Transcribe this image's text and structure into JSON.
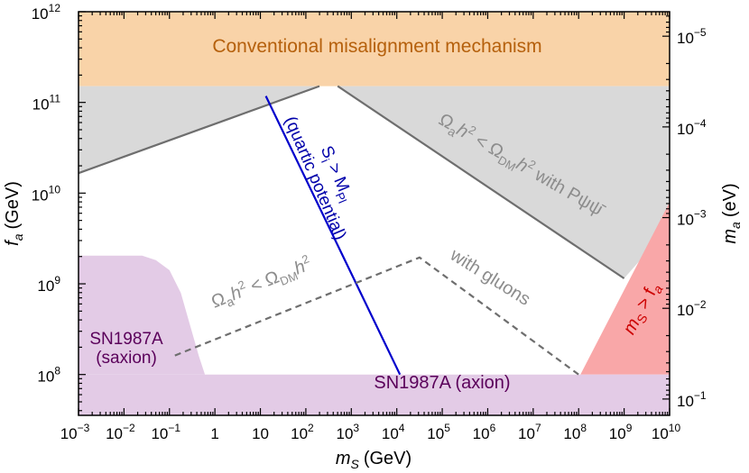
{
  "chart_data": {
    "type": "region",
    "x_axis": {
      "label_main": "m",
      "label_sub": "S",
      "label_units": "(GeV)",
      "scale": "log",
      "range_exp": [
        -3,
        10
      ],
      "tick_labels": [
        {
          "exp": -3,
          "base": "10",
          "sup": "−3"
        },
        {
          "exp": -2,
          "base": "10",
          "sup": "−2"
        },
        {
          "exp": -1,
          "base": "10",
          "sup": "−1"
        },
        {
          "exp": 0,
          "base": "1",
          "sup": ""
        },
        {
          "exp": 1,
          "base": "10",
          "sup": ""
        },
        {
          "exp": 2,
          "base": "10",
          "sup": "2"
        },
        {
          "exp": 3,
          "base": "10",
          "sup": "3"
        },
        {
          "exp": 4,
          "base": "10",
          "sup": "4"
        },
        {
          "exp": 5,
          "base": "10",
          "sup": "5"
        },
        {
          "exp": 6,
          "base": "10",
          "sup": "6"
        },
        {
          "exp": 7,
          "base": "10",
          "sup": "7"
        },
        {
          "exp": 8,
          "base": "10",
          "sup": "8"
        },
        {
          "exp": 9,
          "base": "10",
          "sup": "9"
        },
        {
          "exp": 10,
          "base": "10",
          "sup": "10"
        }
      ]
    },
    "y_axis": {
      "label_main": "f",
      "label_sub": "a",
      "label_units": "(GeV)",
      "scale": "log",
      "range_exp": [
        7.55,
        12
      ],
      "tick_labels": [
        {
          "exp": 8,
          "base": "10",
          "sup": "8"
        },
        {
          "exp": 9,
          "base": "10",
          "sup": "9"
        },
        {
          "exp": 10,
          "base": "10",
          "sup": "10"
        },
        {
          "exp": 11,
          "base": "10",
          "sup": "11"
        },
        {
          "exp": 12,
          "base": "10",
          "sup": "12"
        }
      ]
    },
    "y2_axis": {
      "label_main": "m",
      "label_sub": "a",
      "label_units": "(eV)",
      "scale": "log",
      "tick_labels": [
        {
          "fa_exp": 11.73,
          "base": "10",
          "sup": "−5"
        },
        {
          "fa_exp": 10.73,
          "base": "10",
          "sup": "−4"
        },
        {
          "fa_exp": 9.73,
          "base": "10",
          "sup": "−3"
        },
        {
          "fa_exp": 8.73,
          "base": "10",
          "sup": "−2"
        },
        {
          "fa_exp": 7.73,
          "base": "10",
          "sup": "−1"
        }
      ]
    },
    "regions": [
      {
        "id": "misalignment",
        "label": "Conventional misalignment mechanism",
        "color": "#f9d3a8",
        "label_color": "#b5600c",
        "points": [
          [
            -3,
            11.18
          ],
          [
            10,
            11.18
          ],
          [
            10,
            12
          ],
          [
            -3,
            12
          ]
        ]
      },
      {
        "id": "gray-left",
        "color": "#d9d9d9",
        "points": [
          [
            -3,
            10.22
          ],
          [
            2.3,
            11.18
          ],
          [
            -3,
            11.18
          ]
        ]
      },
      {
        "id": "gray-right",
        "color": "#d9d9d9",
        "points": [
          [
            2.7,
            11.18
          ],
          [
            10,
            11.18
          ],
          [
            10,
            9.63
          ],
          [
            9.0,
            9.06
          ]
        ]
      },
      {
        "id": "ms-gt-fa",
        "label_main": "m",
        "label_sub": "S",
        "label_rest": " > f",
        "label_sub2": "a",
        "color": "#f9a7a8",
        "label_color": "#cc0000",
        "points": [
          [
            8.04,
            8.0
          ],
          [
            10,
            8.0
          ],
          [
            10,
            9.9
          ]
        ]
      },
      {
        "id": "sn-axion",
        "label": "SN1987A (axion)",
        "color": "#e3cbe6",
        "label_color": "#5a005a",
        "points": [
          [
            -3,
            7.55
          ],
          [
            10,
            7.55
          ],
          [
            10,
            8.0
          ],
          [
            -3,
            8.0
          ]
        ]
      },
      {
        "id": "sn-saxion",
        "label_line1": "SN1987A",
        "label_line2": "(saxion)",
        "color": "#e3cbe6",
        "label_color": "#5a005a",
        "points": [
          [
            -3,
            8.0
          ],
          [
            -3,
            9.31
          ],
          [
            -1.6,
            9.31
          ],
          [
            -1.3,
            9.26
          ],
          [
            -1.0,
            9.15
          ],
          [
            -0.75,
            8.9
          ],
          [
            -0.55,
            8.55
          ],
          [
            -0.35,
            8.2
          ],
          [
            -0.22,
            8.0
          ]
        ]
      }
    ],
    "lines": [
      {
        "id": "boundary-left",
        "color": "#6e6e6e",
        "dash": false,
        "points": [
          [
            -3,
            10.22
          ],
          [
            2.3,
            11.18
          ]
        ]
      },
      {
        "id": "boundary-right",
        "color": "#6e6e6e",
        "dash": false,
        "points": [
          [
            2.7,
            11.18
          ],
          [
            9.0,
            9.06
          ]
        ]
      },
      {
        "id": "si-line",
        "color": "#0000cc",
        "dash": false,
        "points": [
          [
            1.12,
            11.07
          ],
          [
            4.07,
            8.0
          ]
        ]
      },
      {
        "id": "gluons-dashed",
        "color": "#6e6e6e",
        "dash": true,
        "points": [
          [
            -0.88,
            8.21
          ],
          [
            4.5,
            9.29
          ],
          [
            8.0,
            8.0
          ]
        ]
      }
    ],
    "annotations": [
      {
        "id": "anno-omega-psi",
        "color": "#8c8c8c",
        "omega_sub": "a",
        "h": "h",
        "sup": "2",
        "lt": " < Ω",
        "dm": "DM",
        "tail": " with  Pψψ̄"
      },
      {
        "id": "anno-omega-gluons",
        "color": "#8c8c8c",
        "omega_sub": "a",
        "h": "h",
        "sup": "2",
        "lt": " < Ω",
        "dm": "DM"
      },
      {
        "id": "anno-with-gluons",
        "color": "#8c8c8c",
        "text": "with gluons"
      },
      {
        "id": "anno-si",
        "color": "#0000aa",
        "line1_s": "S",
        "line1_sub": "i",
        "line1_rest": " > M",
        "line1_sub2": "Pl",
        "line2": "(quartic potential)"
      }
    ]
  }
}
